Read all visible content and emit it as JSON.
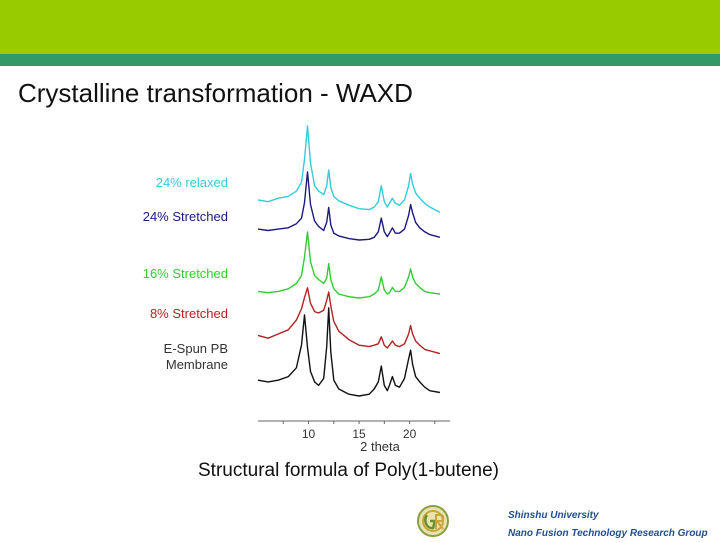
{
  "title": "Crystalline transformation - WAXD",
  "caption": "Structural formula of Poly(1-butene)",
  "university": {
    "name": "Shinshu University",
    "group": "Nano Fusion Technology Research Group"
  },
  "colors": {
    "top_bar": "#99cc00",
    "sub_bar": "#339966"
  },
  "chart_data": {
    "type": "line",
    "xlabel": "2 theta",
    "ylabel": "",
    "xlim": [
      5,
      24
    ],
    "x_ticks": [
      10,
      15,
      20
    ],
    "grid": false,
    "stacked": true,
    "x": [
      5.0,
      6.0,
      7.0,
      8.0,
      8.8,
      9.3,
      9.6,
      9.9,
      10.2,
      10.6,
      11.0,
      11.5,
      11.8,
      12.0,
      12.2,
      12.5,
      13.0,
      14.0,
      15.0,
      16.0,
      16.5,
      16.9,
      17.2,
      17.5,
      17.8,
      18.0,
      18.3,
      18.6,
      19.0,
      19.5,
      19.9,
      20.1,
      20.3,
      20.6,
      21.0,
      21.5,
      22.0,
      23.0
    ],
    "series": [
      {
        "name": "24% relaxed",
        "color": "#33ccdd",
        "values": [
          0.16,
          0.14,
          0.18,
          0.2,
          0.26,
          0.36,
          0.62,
          1.0,
          0.58,
          0.32,
          0.26,
          0.22,
          0.32,
          0.5,
          0.3,
          0.2,
          0.15,
          0.1,
          0.06,
          0.05,
          0.08,
          0.14,
          0.32,
          0.14,
          0.08,
          0.12,
          0.18,
          0.12,
          0.1,
          0.16,
          0.32,
          0.46,
          0.34,
          0.24,
          0.18,
          0.12,
          0.08,
          0.02
        ]
      },
      {
        "name": "24% Stretched",
        "color": "#1a1a80",
        "values": [
          0.16,
          0.14,
          0.16,
          0.18,
          0.24,
          0.32,
          0.55,
          1.0,
          0.52,
          0.28,
          0.2,
          0.14,
          0.26,
          0.48,
          0.22,
          0.1,
          0.06,
          0.02,
          0.0,
          0.01,
          0.04,
          0.12,
          0.32,
          0.12,
          0.05,
          0.1,
          0.18,
          0.1,
          0.1,
          0.16,
          0.36,
          0.52,
          0.4,
          0.26,
          0.18,
          0.12,
          0.08,
          0.04
        ]
      },
      {
        "name": "16% Stretched",
        "color": "#33cc33",
        "values": [
          0.1,
          0.08,
          0.1,
          0.14,
          0.22,
          0.34,
          0.62,
          1.0,
          0.55,
          0.34,
          0.28,
          0.22,
          0.3,
          0.52,
          0.28,
          0.14,
          0.06,
          0.02,
          0.0,
          0.02,
          0.06,
          0.12,
          0.32,
          0.12,
          0.06,
          0.08,
          0.16,
          0.1,
          0.1,
          0.16,
          0.32,
          0.44,
          0.32,
          0.22,
          0.16,
          0.1,
          0.08,
          0.06
        ]
      },
      {
        "name": "8% Stretched",
        "color": "#b22222",
        "values": [
          0.28,
          0.24,
          0.3,
          0.36,
          0.5,
          0.66,
          0.82,
          0.96,
          0.74,
          0.62,
          0.6,
          0.64,
          0.78,
          0.9,
          0.7,
          0.48,
          0.34,
          0.22,
          0.14,
          0.12,
          0.14,
          0.16,
          0.26,
          0.14,
          0.1,
          0.14,
          0.2,
          0.14,
          0.12,
          0.16,
          0.3,
          0.42,
          0.3,
          0.2,
          0.14,
          0.08,
          0.06,
          0.02
        ]
      },
      {
        "name": "E-Spun PB Membrane",
        "color": "#111111",
        "values": [
          0.18,
          0.16,
          0.18,
          0.22,
          0.32,
          0.58,
          0.92,
          0.55,
          0.28,
          0.16,
          0.12,
          0.2,
          0.56,
          1.0,
          0.5,
          0.18,
          0.08,
          0.02,
          0.0,
          0.02,
          0.08,
          0.16,
          0.34,
          0.12,
          0.06,
          0.12,
          0.22,
          0.12,
          0.1,
          0.2,
          0.42,
          0.52,
          0.36,
          0.22,
          0.16,
          0.1,
          0.06,
          0.04
        ]
      }
    ],
    "series_labels": [
      "24% relaxed",
      "24% Stretched",
      "16%   Stretched",
      "8% Stretched",
      "E-Spun PB",
      "Membrane"
    ]
  }
}
